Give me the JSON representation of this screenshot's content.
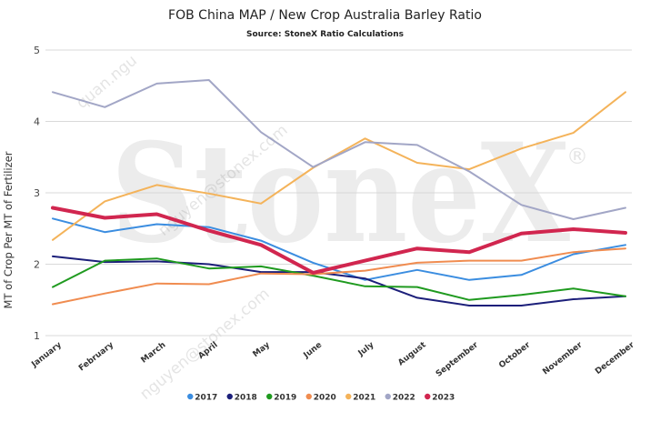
{
  "chart_data": {
    "type": "line",
    "title": "FOB China MAP / New Crop Australia Barley Ratio",
    "subtitle": "Source: StoneX Ratio Calculations",
    "xlabel": "",
    "ylabel": "MT of Crop Per MT of Fertilizer",
    "ylim": [
      1,
      5
    ],
    "yticks": [
      "1",
      "2",
      "3",
      "4",
      "5"
    ],
    "grid": true,
    "legend_position": "bottom",
    "categories": [
      "January",
      "February",
      "March",
      "April",
      "May",
      "June",
      "July",
      "August",
      "September",
      "October",
      "November",
      "December"
    ],
    "series": [
      {
        "name": "2017",
        "color": "#3b8de0",
        "width": 2,
        "values": [
          2.64,
          2.45,
          2.56,
          2.52,
          2.33,
          2.02,
          1.78,
          1.92,
          1.78,
          1.85,
          2.14,
          2.27
        ]
      },
      {
        "name": "2018",
        "color": "#1c1f7a",
        "width": 2,
        "values": [
          2.11,
          2.03,
          2.04,
          2.0,
          1.89,
          1.89,
          1.8,
          1.53,
          1.42,
          1.42,
          1.51,
          1.55
        ]
      },
      {
        "name": "2019",
        "color": "#1f9a1f",
        "width": 2,
        "values": [
          1.68,
          2.05,
          2.08,
          1.94,
          1.97,
          1.84,
          1.69,
          1.68,
          1.5,
          1.57,
          1.66,
          1.55
        ]
      },
      {
        "name": "2020",
        "color": "#f08c50",
        "width": 2,
        "values": [
          1.44,
          1.59,
          1.73,
          1.72,
          1.87,
          1.86,
          1.91,
          2.02,
          2.05,
          2.05,
          2.17,
          2.22
        ]
      },
      {
        "name": "2021",
        "color": "#f4b35a",
        "width": 2,
        "values": [
          2.34,
          2.88,
          3.11,
          2.99,
          2.85,
          3.35,
          3.76,
          3.42,
          3.33,
          3.62,
          3.84,
          4.41
        ]
      },
      {
        "name": "2022",
        "color": "#a2a6c6",
        "width": 2,
        "values": [
          4.41,
          4.2,
          4.53,
          4.58,
          3.85,
          3.36,
          3.71,
          3.67,
          3.3,
          2.83,
          2.63,
          2.79
        ]
      },
      {
        "name": "2023",
        "color": "#d1264f",
        "width": 4,
        "values": [
          2.79,
          2.65,
          2.7,
          2.47,
          2.27,
          1.88,
          2.05,
          2.22,
          2.17,
          2.43,
          2.49,
          2.44
        ]
      }
    ]
  },
  "watermark": {
    "brand": "StoneX",
    "registered": "®"
  }
}
